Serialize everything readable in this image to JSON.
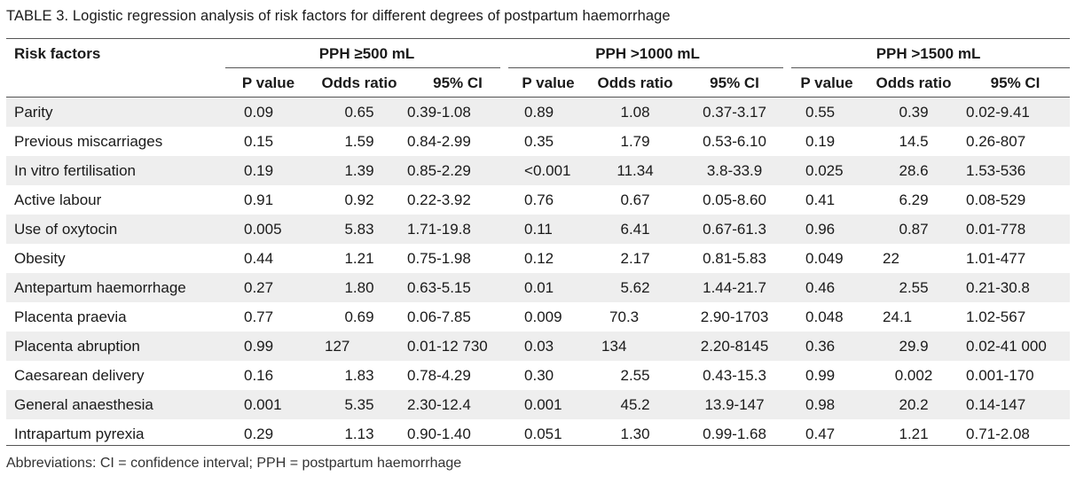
{
  "caption": {
    "label": "TABLE 3.",
    "text": "Logistic regression analysis of risk factors for different degrees of postpartum haemorrhage"
  },
  "table": {
    "rowhead": "Risk factors",
    "groups": [
      "PPH ≥500 mL",
      "PPH >1000 mL",
      "PPH >1500 mL"
    ],
    "subheaders": [
      "P value",
      "Odds ratio",
      "95% CI"
    ],
    "rows": [
      {
        "factor": "Parity",
        "values": [
          "0.09",
          "0.65",
          "0.39-1.08",
          "0.89",
          "1.08",
          "0.37-3.17",
          "0.55",
          "0.39",
          "0.02-9.41"
        ]
      },
      {
        "factor": "Previous miscarriages",
        "values": [
          "0.15",
          "1.59",
          "0.84-2.99",
          "0.35",
          "1.79",
          "0.53-6.10",
          "0.19",
          "14.5",
          "0.26-807"
        ]
      },
      {
        "factor": "In vitro fertilisation",
        "values": [
          "0.19",
          "1.39",
          "0.85-2.29",
          "<0.001",
          "11.34",
          "3.8-33.9",
          "0.025",
          "28.6",
          "1.53-536"
        ]
      },
      {
        "factor": "Active labour",
        "values": [
          "0.91",
          "0.92",
          "0.22-3.92",
          "0.76",
          "0.67",
          "0.05-8.60",
          "0.41",
          "6.29",
          "0.08-529"
        ]
      },
      {
        "factor": "Use of oxytocin",
        "values": [
          "0.005",
          "5.83",
          "1.71-19.8",
          "0.11",
          "6.41",
          "0.67-61.3",
          "0.96",
          "0.87",
          "0.01-778"
        ]
      },
      {
        "factor": "Obesity",
        "values": [
          "0.44",
          "1.21",
          "0.75-1.98",
          "0.12",
          "2.17",
          "0.81-5.83",
          "0.049",
          "22",
          "1.01-477"
        ]
      },
      {
        "factor": "Antepartum haemorrhage",
        "values": [
          "0.27",
          "1.80",
          "0.63-5.15",
          "0.01",
          "5.62",
          "1.44-21.7",
          "0.46",
          "2.55",
          "0.21-30.8"
        ]
      },
      {
        "factor": "Placenta praevia",
        "values": [
          "0.77",
          "0.69",
          "0.06-7.85",
          "0.009",
          "70.3",
          "2.90-1703",
          "0.048",
          "24.1",
          "1.02-567"
        ]
      },
      {
        "factor": "Placenta abruption",
        "values": [
          "0.99",
          "127",
          "0.01-12 730",
          "0.03",
          "134",
          "2.20-8145",
          "0.36",
          "29.9",
          "0.02-41 000"
        ]
      },
      {
        "factor": "Caesarean delivery",
        "values": [
          "0.16",
          "1.83",
          "0.78-4.29",
          "0.30",
          "2.55",
          "0.43-15.3",
          "0.99",
          "0.002",
          "0.001-170"
        ]
      },
      {
        "factor": "General anaesthesia",
        "values": [
          "0.001",
          "5.35",
          "2.30-12.4",
          "0.001",
          "45.2",
          "13.9-147",
          "0.98",
          "20.2",
          "0.14-147"
        ]
      },
      {
        "factor": "Intrapartum pyrexia",
        "values": [
          "0.29",
          "1.13",
          "0.90-1.40",
          "0.051",
          "1.30",
          "0.99-1.68",
          "0.47",
          "1.21",
          "0.71-2.08"
        ]
      }
    ]
  },
  "footnote": "Abbreviations: CI = confidence interval; PPH = postpartum haemorrhage"
}
